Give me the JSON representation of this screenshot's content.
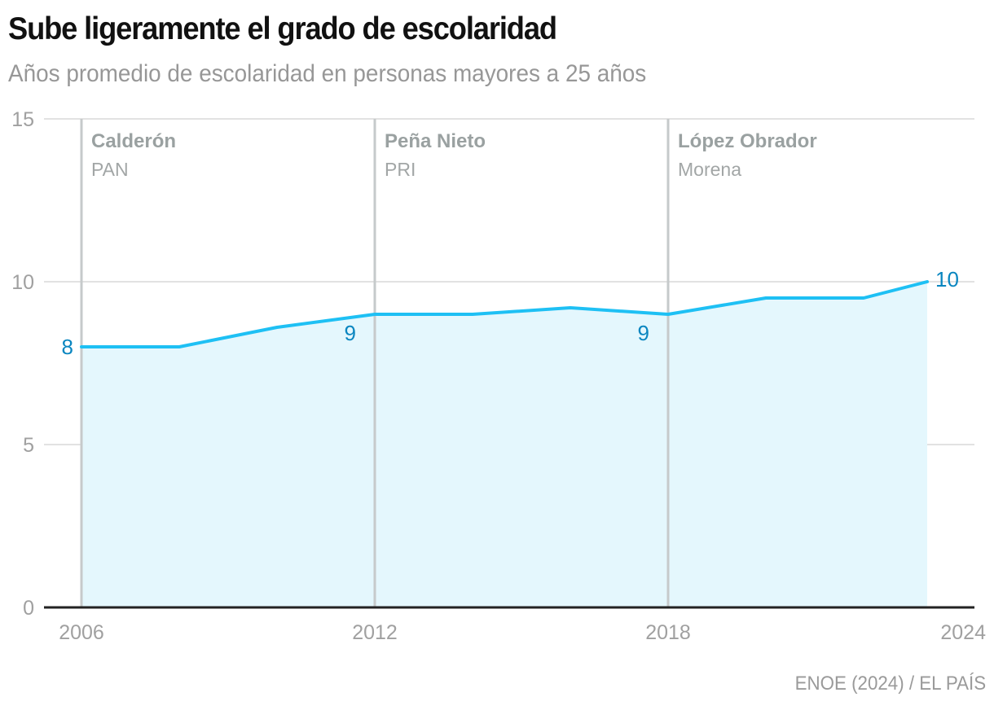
{
  "header": {
    "title": "Sube ligeramente el grado de escolaridad",
    "subtitle": "Años promedio de escolaridad en personas mayores a 25 años"
  },
  "footer": {
    "source": "ENOE (2024) / EL PAÍS"
  },
  "colors": {
    "line": "#1ec0f4",
    "area": "#e4f7fd",
    "label": "#0a86c0",
    "period_line": "#c6cacb",
    "grid": "#e2e2e2",
    "axis": "#222222"
  },
  "chart_data": {
    "type": "area",
    "title": "Sube ligeramente el grado de escolaridad",
    "subtitle": "Años promedio de escolaridad en personas mayores a 25 años",
    "xlabel": "",
    "ylabel": "",
    "xlim": [
      2006,
      2024
    ],
    "ylim": [
      0,
      15
    ],
    "grid": true,
    "x_ticks": [
      "2006",
      "2012",
      "2018",
      "2024"
    ],
    "y_ticks": [
      "0",
      "5",
      "10",
      "15"
    ],
    "series": [
      {
        "name": "Años promedio de escolaridad",
        "x": [
          2006,
          2008,
          2010,
          2012,
          2014,
          2016,
          2018,
          2020,
          2022,
          2023.3
        ],
        "values": [
          8.0,
          8.0,
          8.6,
          9.0,
          9.0,
          9.2,
          9.0,
          9.5,
          9.5,
          10.0
        ]
      }
    ],
    "data_labels": [
      {
        "x": 2006,
        "y": 8.0,
        "text": "8",
        "position": "left"
      },
      {
        "x": 2012,
        "y": 9.0,
        "text": "9",
        "position": "below-left"
      },
      {
        "x": 2018,
        "y": 9.0,
        "text": "9",
        "position": "below-left"
      },
      {
        "x": 2023.3,
        "y": 10.0,
        "text": "10",
        "position": "right"
      }
    ],
    "annotations": [
      {
        "x": 2006,
        "name": "Calderón",
        "party": "PAN"
      },
      {
        "x": 2012,
        "name": "Peña Nieto",
        "party": "PRI"
      },
      {
        "x": 2018,
        "name": "López Obrador",
        "party": "Morena"
      }
    ],
    "source": "ENOE (2024) / EL PAÍS"
  }
}
